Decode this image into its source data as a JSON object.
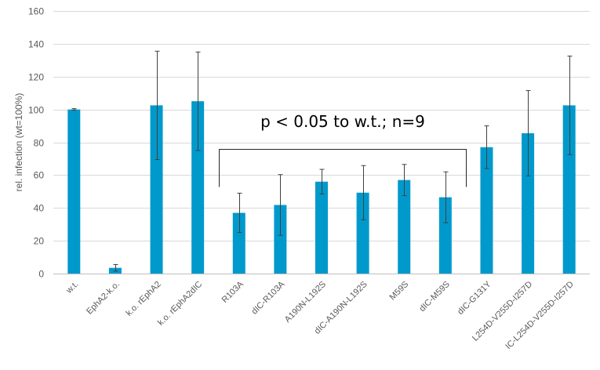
{
  "chart_data": {
    "type": "bar",
    "categories": [
      "w.t.",
      "EphA2-k.o.",
      "k.o. rEphA2",
      "k.o. rEphA2dIC",
      "R103A",
      "dIC-R103A",
      "A190N-L192S",
      "dIC-A190N-L192S",
      "M59S",
      "dIC-M59S",
      "dIC-G131Y",
      "L254D-V255D-I257D",
      "IC-L254D-V255D-I257D"
    ],
    "values": [
      100,
      3.5,
      102.5,
      105,
      37,
      41.8,
      56,
      49.3,
      57,
      46.5,
      77,
      85.5,
      102.5
    ],
    "errors": [
      0.5,
      2,
      33,
      30,
      12,
      18.5,
      7.5,
      16.5,
      9.5,
      15.5,
      13,
      26,
      30
    ],
    "title": "",
    "xlabel": "",
    "ylabel": "rel. infection (wt=100%)",
    "ylim": [
      0,
      160
    ],
    "yticks": [
      0,
      20,
      40,
      60,
      80,
      100,
      120,
      140,
      160
    ],
    "grid": true,
    "colors": {
      "bar": "#0099cc",
      "grid": "#d9d9d9",
      "error": "#404040"
    },
    "annotation": {
      "text": "p < 0.05 to w.t.; n=9",
      "from_category": 4,
      "to_category": 10
    }
  }
}
